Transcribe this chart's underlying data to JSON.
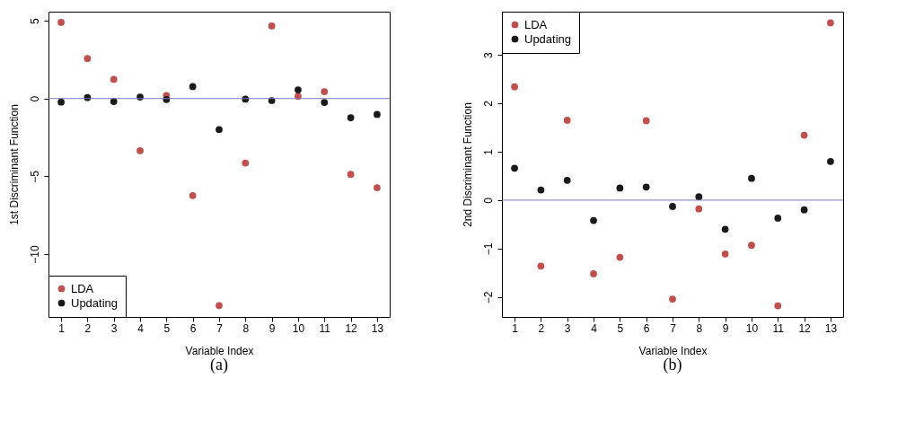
{
  "chart_data": [
    {
      "type": "scatter",
      "xlabel": "Variable Index",
      "ylabel": "1st Discriminant Function",
      "annotations": [
        "(a)"
      ],
      "x": [
        1,
        2,
        3,
        4,
        5,
        6,
        7,
        8,
        9,
        10,
        11,
        12,
        13
      ],
      "xlim": [
        0.52,
        13.48
      ],
      "xticks": [
        1,
        2,
        3,
        4,
        5,
        6,
        7,
        8,
        9,
        10,
        11,
        12,
        13
      ],
      "ylim": [
        -14.03,
        5.58
      ],
      "yticks": [
        -10,
        -5,
        0,
        5
      ],
      "grid": false,
      "legend": "bottom left",
      "marker": "circle",
      "ref_lines": [
        {
          "axis": "y",
          "value": 0,
          "color": "#7878b4"
        }
      ],
      "series": [
        {
          "name": "LDA",
          "color": "#c0504d",
          "values": [
            4.89,
            2.57,
            1.23,
            -3.35,
            0.19,
            -6.23,
            -13.3,
            -4.14,
            4.66,
            0.15,
            0.44,
            -4.87,
            -5.73
          ]
        },
        {
          "name": "Updating",
          "color": "#1a1a1a",
          "values": [
            -0.23,
            0.06,
            -0.19,
            0.1,
            -0.06,
            0.77,
            -1.99,
            -0.04,
            -0.13,
            0.56,
            -0.25,
            -1.23,
            -1.02
          ]
        }
      ]
    },
    {
      "type": "scatter",
      "xlabel": "Variable Index",
      "ylabel": "2nd Discriminant Function",
      "annotations": [
        "(b)"
      ],
      "x": [
        1,
        2,
        3,
        4,
        5,
        6,
        7,
        8,
        9,
        10,
        11,
        12,
        13
      ],
      "xlim": [
        0.52,
        13.48
      ],
      "xticks": [
        1,
        2,
        3,
        4,
        5,
        6,
        7,
        8,
        9,
        10,
        11,
        12,
        13
      ],
      "ylim": [
        -2.41,
        3.89
      ],
      "yticks": [
        -2,
        -1,
        0,
        1,
        2,
        3
      ],
      "grid": false,
      "legend": "top left",
      "marker": "circle",
      "ref_lines": [
        {
          "axis": "y",
          "value": 0,
          "color": "#7878b4"
        }
      ],
      "series": [
        {
          "name": "LDA",
          "color": "#c0504d",
          "values": [
            2.34,
            -1.36,
            1.65,
            -1.52,
            -1.18,
            1.64,
            -2.04,
            -0.18,
            -1.11,
            -0.93,
            -2.18,
            1.34,
            3.66
          ]
        },
        {
          "name": "Updating",
          "color": "#1a1a1a",
          "values": [
            0.66,
            0.21,
            0.41,
            -0.42,
            0.25,
            0.27,
            -0.13,
            0.07,
            -0.6,
            0.45,
            -0.37,
            -0.2,
            0.8
          ]
        }
      ]
    }
  ]
}
